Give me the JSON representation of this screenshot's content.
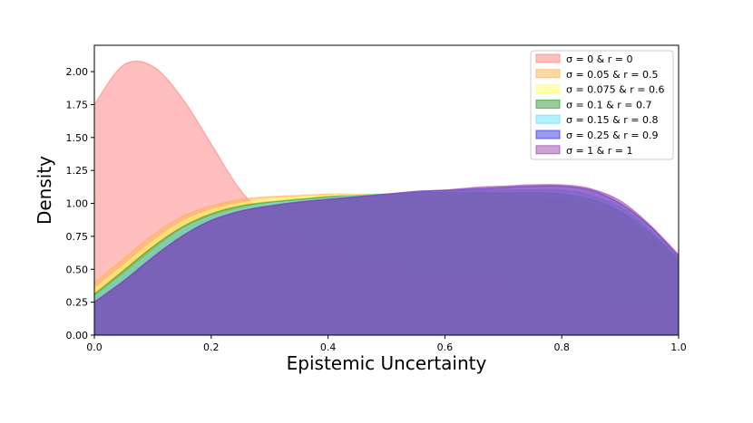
{
  "chart_data": {
    "type": "area",
    "title": "",
    "xlabel": "Epistemic Uncertainty",
    "ylabel": "Density",
    "xlim": [
      0.0,
      1.0
    ],
    "ylim": [
      0.0,
      2.2
    ],
    "x_ticks": [
      0.0,
      0.2,
      0.4,
      0.6,
      0.8,
      1.0
    ],
    "x_tick_labels": [
      "0.0",
      "0.2",
      "0.4",
      "0.6",
      "0.8",
      "1.0"
    ],
    "y_ticks": [
      0.0,
      0.25,
      0.5,
      0.75,
      1.0,
      1.25,
      1.5,
      1.75,
      2.0
    ],
    "y_tick_labels": [
      "0.00",
      "0.25",
      "0.50",
      "0.75",
      "1.00",
      "1.25",
      "1.50",
      "1.75",
      "2.00"
    ],
    "grid": false,
    "legend_position": "top-right",
    "x": [
      0.0,
      0.05,
      0.1,
      0.15,
      0.2,
      0.25,
      0.3,
      0.35,
      0.4,
      0.45,
      0.5,
      0.55,
      0.6,
      0.65,
      0.7,
      0.75,
      0.8,
      0.85,
      0.9,
      0.95,
      1.0
    ],
    "series": [
      {
        "name": "σ = 0 & r = 0",
        "color": "#ff8080",
        "values": [
          1.75,
          2.05,
          2.04,
          1.8,
          1.45,
          1.1,
          0.88,
          0.73,
          0.63,
          0.57,
          0.52,
          0.48,
          0.45,
          0.42,
          0.39,
          0.36,
          0.33,
          0.29,
          0.25,
          0.2,
          0.14
        ]
      },
      {
        "name": "σ = 0.05 & r = 0.5",
        "color": "#ffb347",
        "values": [
          0.4,
          0.58,
          0.76,
          0.9,
          0.98,
          1.03,
          1.05,
          1.06,
          1.07,
          1.07,
          1.07,
          1.06,
          1.06,
          1.05,
          1.05,
          1.04,
          1.02,
          0.98,
          0.88,
          0.73,
          0.55
        ]
      },
      {
        "name": "σ = 0.075 & r = 0.6",
        "color": "#ffff66",
        "values": [
          0.35,
          0.53,
          0.71,
          0.86,
          0.95,
          1.0,
          1.03,
          1.05,
          1.06,
          1.07,
          1.07,
          1.07,
          1.07,
          1.07,
          1.06,
          1.05,
          1.04,
          1.0,
          0.91,
          0.76,
          0.56
        ]
      },
      {
        "name": "σ = 0.1 & r = 0.7",
        "color": "#339933",
        "values": [
          0.31,
          0.49,
          0.67,
          0.82,
          0.92,
          0.98,
          1.01,
          1.03,
          1.05,
          1.06,
          1.07,
          1.08,
          1.08,
          1.08,
          1.08,
          1.08,
          1.07,
          1.03,
          0.94,
          0.78,
          0.57
        ]
      },
      {
        "name": "σ = 0.15 & r = 0.8",
        "color": "#66e0ff",
        "values": [
          0.29,
          0.46,
          0.64,
          0.8,
          0.9,
          0.96,
          1.0,
          1.02,
          1.04,
          1.06,
          1.07,
          1.08,
          1.09,
          1.1,
          1.1,
          1.1,
          1.1,
          1.06,
          0.97,
          0.8,
          0.58
        ]
      },
      {
        "name": "σ = 0.25 & r = 0.9",
        "color": "#3333dd",
        "values": [
          0.25,
          0.41,
          0.59,
          0.75,
          0.87,
          0.94,
          0.98,
          1.01,
          1.03,
          1.05,
          1.07,
          1.09,
          1.1,
          1.11,
          1.12,
          1.13,
          1.13,
          1.1,
          1.0,
          0.83,
          0.6
        ]
      },
      {
        "name": "σ = 1 & r = 1",
        "color": "#9944aa",
        "values": [
          0.25,
          0.41,
          0.59,
          0.75,
          0.87,
          0.94,
          0.98,
          1.01,
          1.03,
          1.05,
          1.07,
          1.09,
          1.1,
          1.12,
          1.13,
          1.14,
          1.14,
          1.11,
          1.02,
          0.84,
          0.61
        ]
      }
    ]
  }
}
